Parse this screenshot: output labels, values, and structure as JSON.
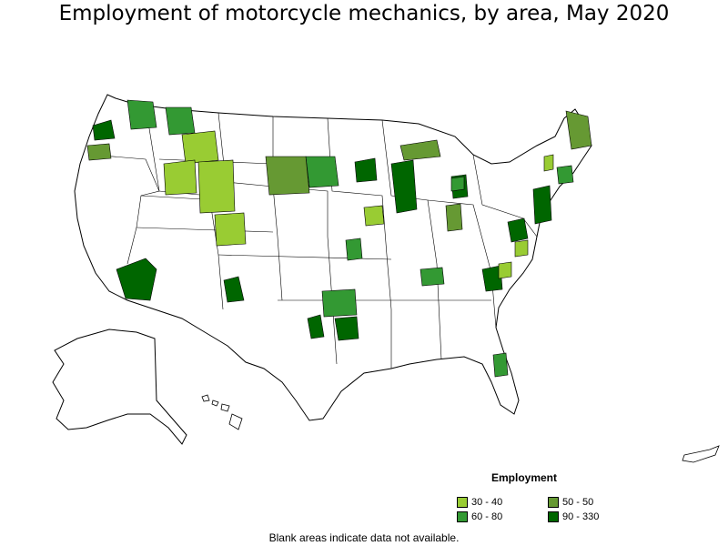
{
  "title": "Employment of motorcycle mechanics, by area, May 2020",
  "legend": {
    "title": "Employment",
    "items": [
      {
        "label": "30 - 40",
        "color": "#99cc33"
      },
      {
        "label": "50 - 50",
        "color": "#669933"
      },
      {
        "label": "60 - 80",
        "color": "#339933"
      },
      {
        "label": "90 - 330",
        "color": "#006600"
      }
    ]
  },
  "footnote": "Blank areas indicate data not available.",
  "colors": {
    "outline": "#000000",
    "land": "#ffffff"
  }
}
